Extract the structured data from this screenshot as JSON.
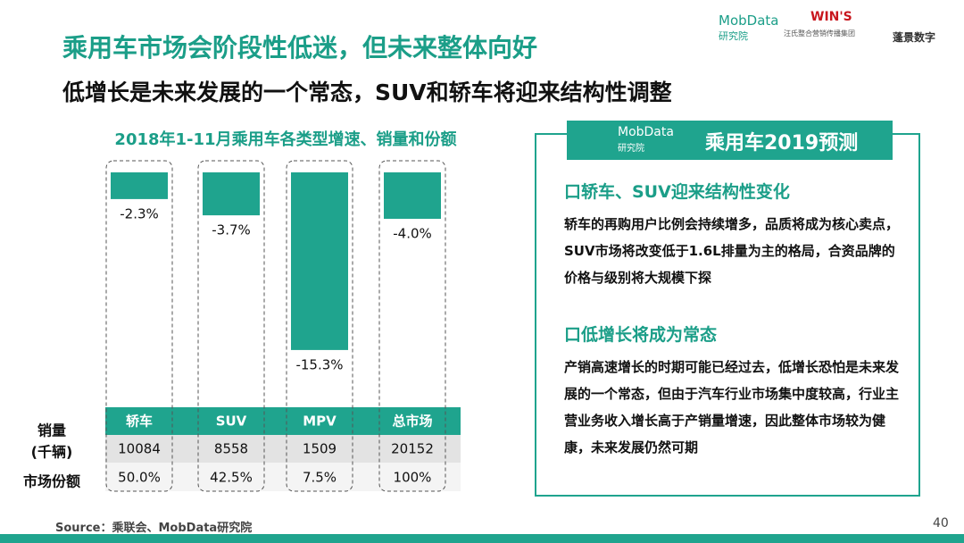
{
  "header": {
    "title": "乘用车市场会阶段性低迷，但未来整体向好",
    "subtitle": "低增长是未来发展的一个常态，SUV和轿车将迎来结构性调整",
    "logos": [
      "MobData",
      "研究院",
      "WIN'S",
      "汪氏整合营销传播集团",
      "蓬景数字"
    ]
  },
  "chart_data": {
    "type": "bar",
    "title": "2018年1-11月乘用车各类型增速、销量和份额",
    "categories": [
      "轿车",
      "SUV",
      "MPV",
      "总市场"
    ],
    "values": [
      -2.3,
      -3.7,
      -15.3,
      -4.0
    ],
    "value_labels": [
      "-2.3%",
      "-3.7%",
      "-15.3%",
      "-4.0%"
    ],
    "color": "#1fa48e",
    "ylim": [
      -16,
      0
    ],
    "rows": [
      {
        "label": [
          "销量",
          "(千辆)"
        ],
        "cells": [
          "10084",
          "8558",
          "1509",
          "20152"
        ]
      },
      {
        "label": [
          "市场份额"
        ],
        "cells": [
          "50.0%",
          "42.5%",
          "7.5%",
          "100%"
        ]
      }
    ]
  },
  "panel": {
    "logo": [
      "MobData",
      "研究院"
    ],
    "title": "乘用车2019预测",
    "sections": [
      {
        "heading": "口轿车、SUV迎来结构性变化",
        "body": "轿车的再购用户比例会持续增多，品质将成为核心卖点，SUV市场将改变低于1.6L排量为主的格局，合资品牌的价格与级别将大规模下探"
      },
      {
        "heading": "口低增长将成为常态",
        "body": "产销高速增长的时期可能已经过去，低增长恐怕是未来发展的一个常态，但由于汽车行业市场集中度较高，行业主营业务收入增长高于产销量增速，因此整体市场较为健康，未来发展仍然可期"
      }
    ]
  },
  "footer": {
    "source": "Source：乘联会、MobData研究院",
    "page": "40"
  }
}
